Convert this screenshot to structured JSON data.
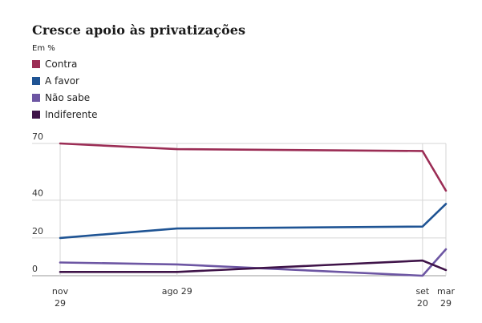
{
  "chart_data": {
    "type": "line",
    "title": "Cresce apoio às privatizações",
    "unit_label": "Em %",
    "x_ticks": [
      {
        "lines": [
          "nov",
          "29"
        ]
      },
      {
        "lines": [
          "ago 29"
        ]
      },
      {
        "lines": [
          "set",
          "20"
        ]
      },
      {
        "lines": [
          "mar",
          "29"
        ]
      }
    ],
    "x_positions": [
      0,
      1,
      3.1,
      3.3
    ],
    "y_ticks": [
      {
        "value": 0,
        "label": "0"
      },
      {
        "value": 20,
        "label": "20"
      },
      {
        "value": 40,
        "label": "40"
      },
      {
        "value": 70,
        "label": "70"
      }
    ],
    "ylim": [
      0,
      70
    ],
    "series": [
      {
        "name": "Contra",
        "color": "#9b2d55",
        "values": [
          70,
          67,
          66,
          45
        ]
      },
      {
        "name": "A favor",
        "color": "#1f5494",
        "values": [
          20,
          25,
          26,
          38
        ]
      },
      {
        "name": "Não sabe",
        "color": "#6d56a3",
        "values": [
          7,
          6,
          0,
          14
        ]
      },
      {
        "name": "Indiferente",
        "color": "#3f1449",
        "values": [
          2,
          2,
          8,
          3
        ]
      }
    ]
  }
}
